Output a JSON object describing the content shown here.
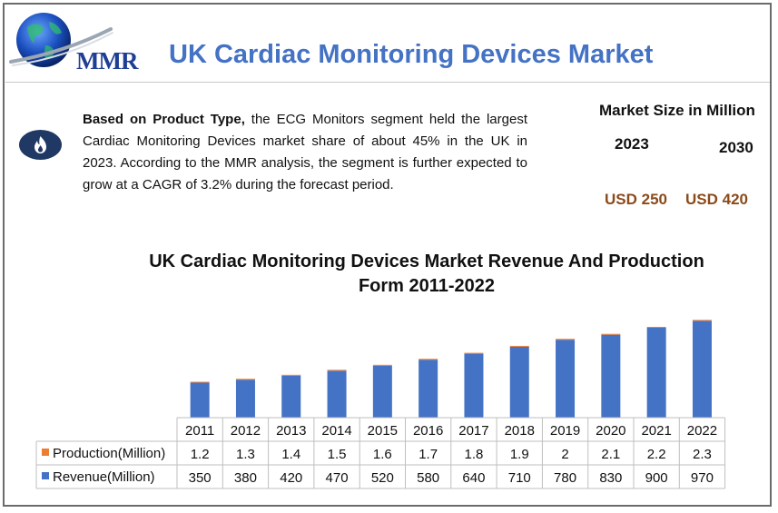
{
  "header": {
    "logo_text": "MMR",
    "title": "UK Cardiac Monitoring Devices Market"
  },
  "summary": {
    "bold_lead": "Based on Product Type,",
    "text": " the ECG Monitors segment held the largest Cardiac Monitoring Devices market share of about 45% in the UK in 2023.  According to the MMR analysis, the segment is further expected to grow at a CAGR of 3.2% during the forecast period."
  },
  "market_size": {
    "title": "Market Size in Million",
    "year_start": "2023",
    "year_end": "2030",
    "value_start": "USD 250",
    "value_end": "USD 420"
  },
  "colors": {
    "title_blue": "#4472c4",
    "bar_blue": "#4472c4",
    "production_orange": "#ed7d31",
    "value_brown": "#8b4a19"
  },
  "chart_data": {
    "type": "bar",
    "title": "UK Cardiac Monitoring Devices Market  Revenue And Production Form 2011-2022",
    "categories": [
      "2011",
      "2012",
      "2013",
      "2014",
      "2015",
      "2016",
      "2017",
      "2018",
      "2019",
      "2020",
      "2021",
      "2022"
    ],
    "series": [
      {
        "name": "Production(Million)",
        "values": [
          1.2,
          1.3,
          1.4,
          1.5,
          1.6,
          1.7,
          1.8,
          1.9,
          2,
          2.1,
          2.2,
          2.3
        ],
        "labels": [
          "1.2",
          "1.3",
          "1.4",
          "1.5",
          "1.6",
          "1.7",
          "1.8",
          "1.9",
          "2",
          "2.1",
          "2.2",
          "2.3"
        ]
      },
      {
        "name": "Revenue(Million)",
        "values": [
          350,
          380,
          420,
          470,
          520,
          580,
          640,
          710,
          780,
          830,
          900,
          970
        ],
        "labels": [
          "350",
          "380",
          "420",
          "470",
          "520",
          "580",
          "640",
          "710",
          "780",
          "830",
          "900",
          "970"
        ]
      }
    ],
    "stacked": true,
    "ylim": [
      0,
      1000
    ],
    "legend": "data-table",
    "grid": false
  }
}
